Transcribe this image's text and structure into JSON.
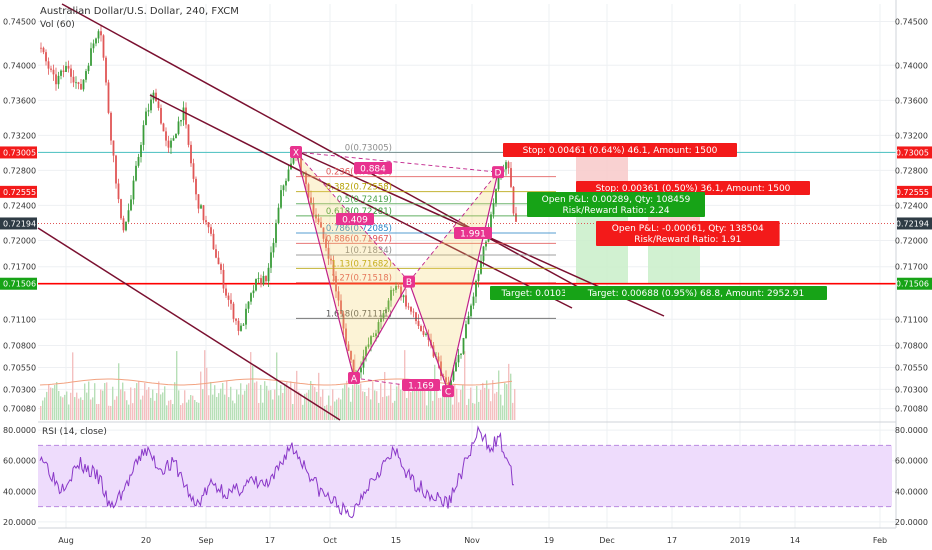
{
  "header": {
    "title": "Australian Dollar/U.S. Dollar, 240, FXCM",
    "vol_label": "Vol (60)",
    "rsi_label": "RSI (14, close)"
  },
  "colors": {
    "up": "#3a9c3a",
    "down": "#e05656",
    "trend": "#7a1030",
    "pattern": "#c0208a",
    "rsi": "#8a38c8",
    "rsi_fill": "#eedcfc",
    "stop_bg": "#f31a1a",
    "target_bg": "#17a317",
    "cyan": "#5cc6c6",
    "red_level": "#ff0000"
  },
  "chart_data": [
    {
      "type": "candlestick",
      "title": "Australian Dollar/U.S. Dollar, 240, FXCM",
      "ylim": [
        0.6995,
        0.747
      ],
      "y_ticks": [
        "0.74500",
        "0.74000",
        "0.73600",
        "0.73200",
        "0.72800",
        "0.72400",
        "0.72000",
        "0.71700",
        "0.71100",
        "0.70800",
        "0.70550",
        "0.70300",
        "0.70080"
      ],
      "y_tick_values": [
        0.745,
        0.74,
        0.736,
        0.732,
        0.728,
        0.724,
        0.72,
        0.717,
        0.711,
        0.708,
        0.7055,
        0.703,
        0.7008
      ],
      "x_ticks": [
        "Aug",
        "20",
        "Sep",
        "17",
        "Oct",
        "15",
        "Nov",
        "19",
        "Dec",
        "17",
        "2019",
        "14",
        "Feb"
      ],
      "highlighted_prices": [
        {
          "label": "0.73005",
          "value": 0.73005,
          "color": "#f31a1a"
        },
        {
          "label": "0.72555",
          "value": 0.72555,
          "color": "#f31a1a"
        },
        {
          "label": "0.72194",
          "value": 0.72194,
          "color": "#2f3b45"
        },
        {
          "label": "0.71506",
          "value": 0.71506,
          "color": "#17a317"
        }
      ],
      "right_price_labels": [
        {
          "label": "0.73005",
          "value": 0.73005,
          "color": "#f31a1a"
        },
        {
          "label": "0.72555",
          "value": 0.72555,
          "color": "#f31a1a"
        },
        {
          "label": "0.72194",
          "value": 0.72194,
          "color": "#2f3b45"
        },
        {
          "label": "0.71506",
          "value": 0.71506,
          "color": "#17a317"
        }
      ],
      "fib_levels": [
        {
          "label": "0(0.73005)",
          "value": 0.73005
        },
        {
          "label": "0.236(0.72729)",
          "value": 0.72729
        },
        {
          "label": "0.382(0.72558)",
          "value": 0.72558
        },
        {
          "label": "0.5(0.72419)",
          "value": 0.72419
        },
        {
          "label": "0.618(0.72281)",
          "value": 0.72281
        },
        {
          "label": "0.786(0.72085)",
          "value": 0.72085
        },
        {
          "label": "0.886(0.71967)",
          "value": 0.71967
        },
        {
          "label": "1(0.71834)",
          "value": 0.71834
        },
        {
          "label": "1.13(0.71682)",
          "value": 0.71682
        },
        {
          "label": "1.27(0.71518)",
          "value": 0.71518
        },
        {
          "label": "1.618(0.71111)",
          "value": 0.71111
        }
      ],
      "pattern_points": [
        {
          "name": "X",
          "value": 0.7301
        },
        {
          "name": "A",
          "value": 0.7043
        },
        {
          "name": "B",
          "value": 0.7153
        },
        {
          "name": "C",
          "value": 0.7028
        },
        {
          "name": "D",
          "value": 0.7278
        }
      ],
      "pattern_ratios": [
        "0.884",
        "0.409",
        "1.991",
        "1.169"
      ],
      "annotations": {
        "stop1": "Stop: 0.00461 (0.64%) 46.1, Amount: 1500",
        "stop2": "Stop: 0.00361 (0.50%) 36.1, Amount: 1500",
        "pnl1": "Open P&L: 0.00289, Qty: 108459",
        "rr1": "Risk/Reward Ratio: 2.24",
        "pnl2": "Open P&L: -0.00061, Qty: 138504",
        "rr2": "Risk/Reward Ratio: 1.91",
        "target1": "Target: 0.01033",
        "target2": "Target: 0.00688 (0.95%) 68.8, Amount: 2952.91"
      }
    },
    {
      "type": "line",
      "title": "RSI (14, close)",
      "ylim": [
        16,
        84
      ],
      "y_ticks": [
        "80.0000",
        "60.0000",
        "40.0000",
        "20.0000"
      ],
      "y_tick_values": [
        80,
        60,
        40,
        20
      ],
      "bands": [
        70,
        30
      ]
    }
  ]
}
